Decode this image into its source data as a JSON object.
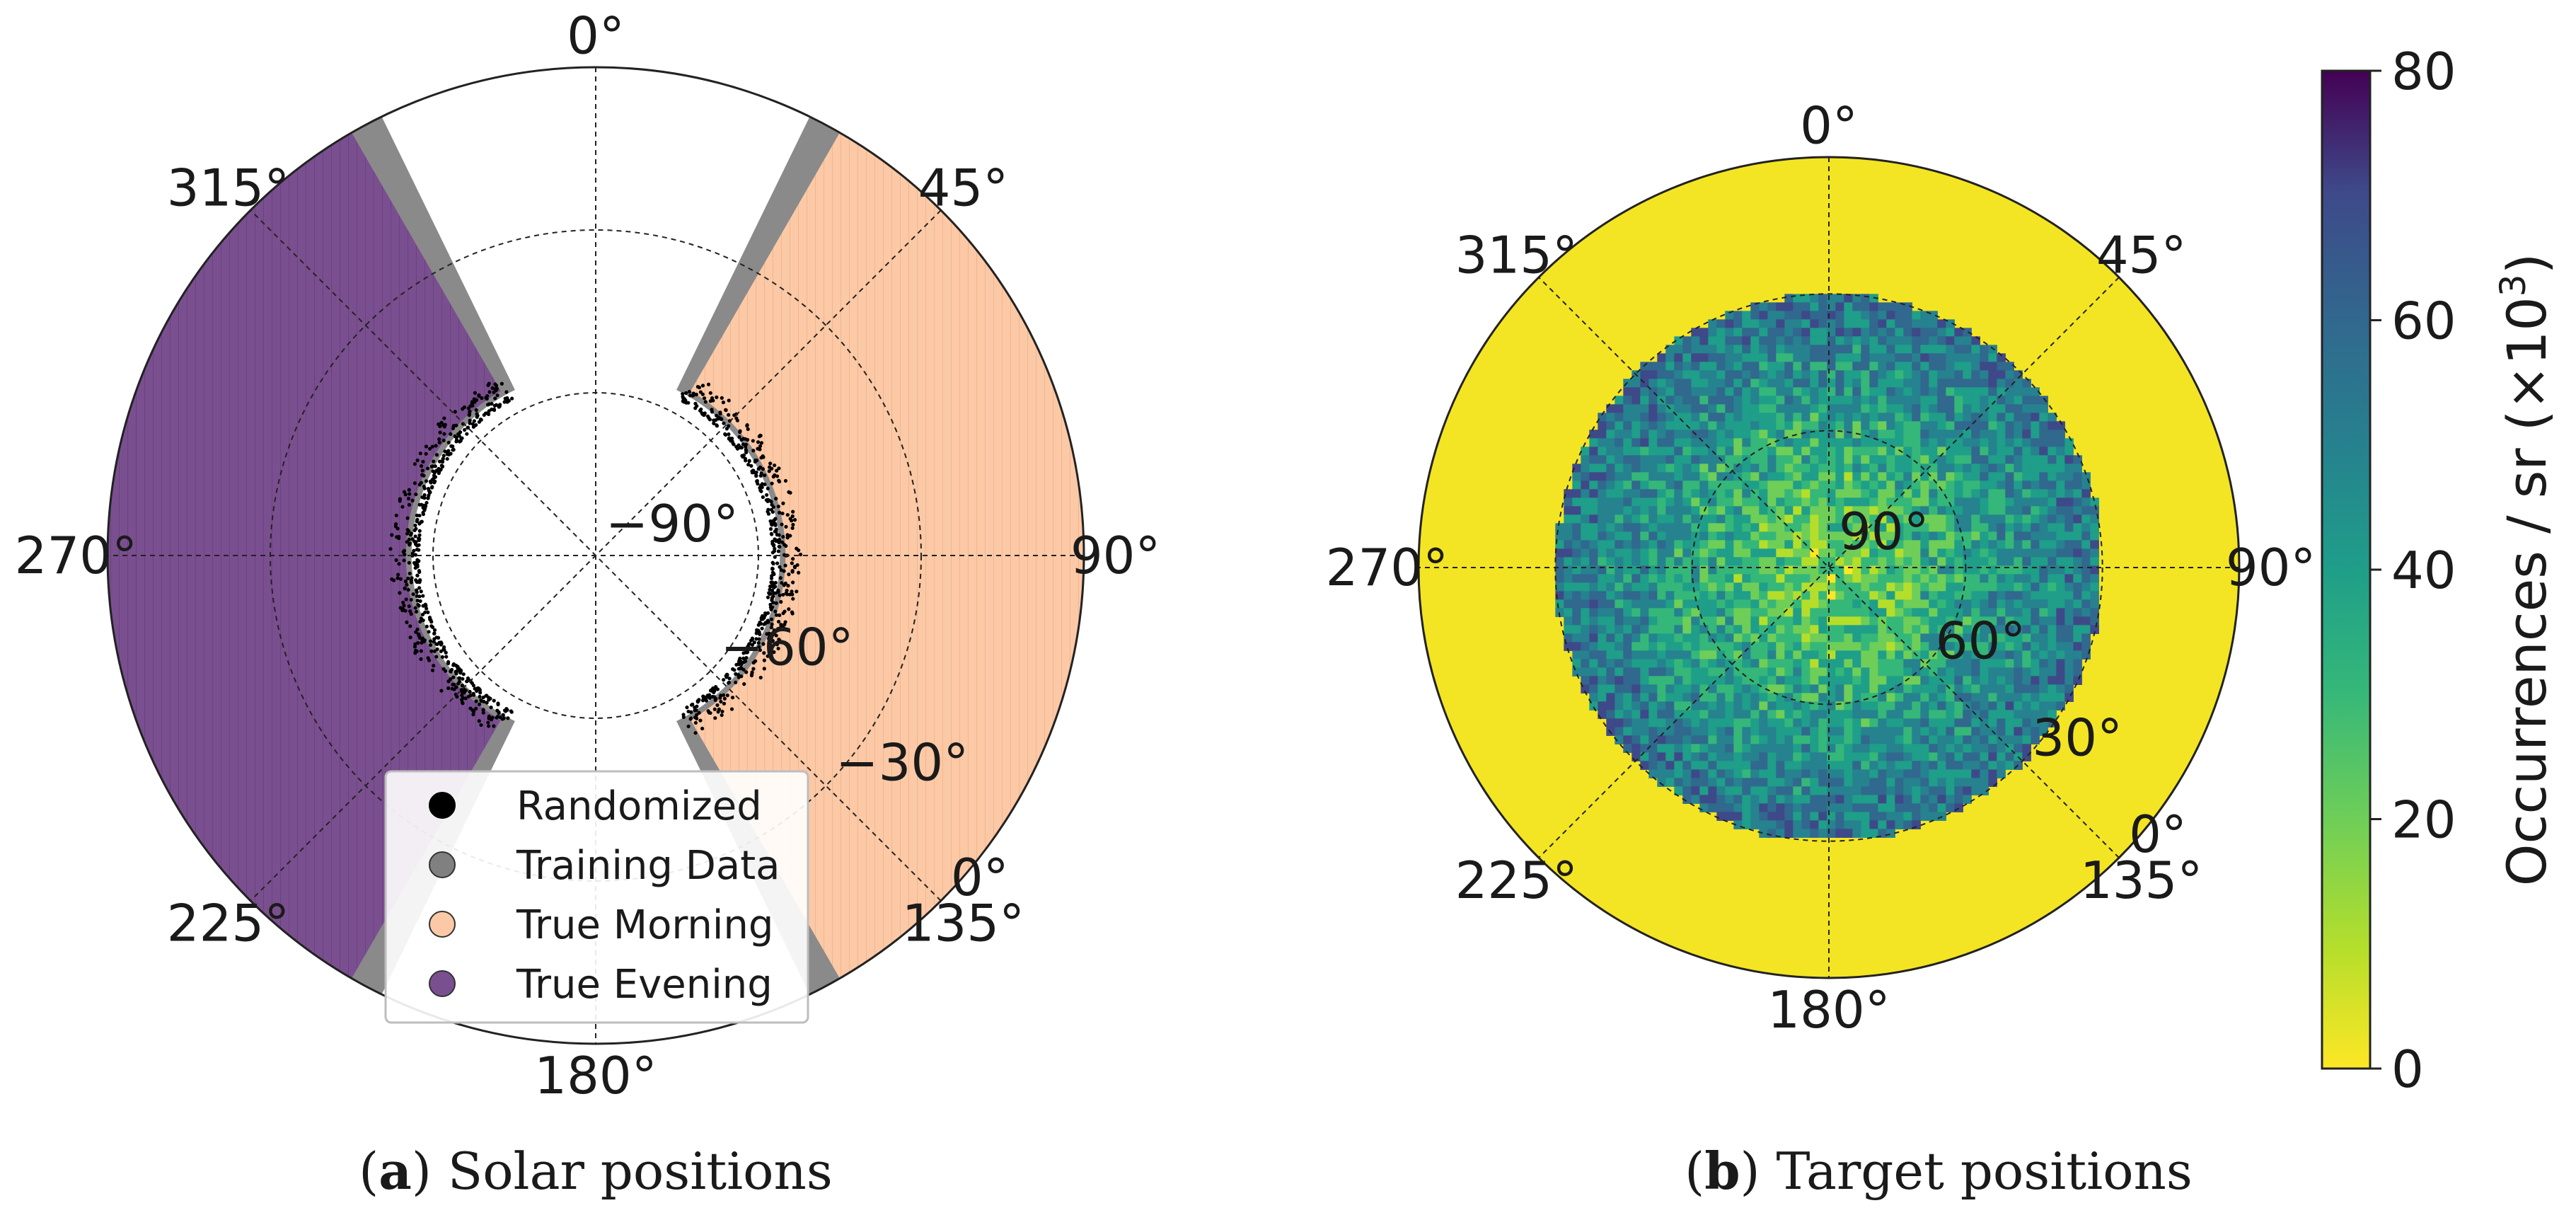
{
  "chart_data": [
    {
      "type": "scatter",
      "projection": "polar",
      "panel_label": "a",
      "caption": "Solar positions",
      "angle_ticks": [
        "0°",
        "45°",
        "90°",
        "135°",
        "180°",
        "225°",
        "270°",
        "315°"
      ],
      "radial_ticks": [
        "−90°",
        "−60°",
        "−30°",
        "0°"
      ],
      "radial_range": [
        -90,
        0
      ],
      "grid": true,
      "legend_position": "bottom-center",
      "legend": [
        {
          "name": "Randomized",
          "color": "#000000"
        },
        {
          "name": "Training Data",
          "color": "#808080"
        },
        {
          "name": "True Morning",
          "color": "#fcc9a6"
        },
        {
          "name": "True Evening",
          "color": "#7a4f8f"
        }
      ],
      "regions": [
        {
          "series": "True Morning",
          "azimuth_range": [
            30,
            150
          ],
          "elevation_range": [
            -55,
            0
          ]
        },
        {
          "series": "True Evening",
          "azimuth_range": [
            210,
            330
          ],
          "elevation_range": [
            -55,
            0
          ]
        }
      ]
    },
    {
      "type": "heatmap",
      "projection": "polar",
      "panel_label": "b",
      "caption": "Target positions",
      "angle_ticks": [
        "0°",
        "45°",
        "90°",
        "135°",
        "180°",
        "225°",
        "270°",
        "315°"
      ],
      "radial_ticks": [
        "90°",
        "60°",
        "30°",
        "0°"
      ],
      "radial_range": [
        90,
        0
      ],
      "grid": true,
      "covered_elevation_range": [
        30,
        90
      ],
      "colorbar": {
        "label": "Occurrences / sr (×10",
        "label_sup": "3",
        "label_end": ")",
        "ticks": [
          "0",
          "20",
          "40",
          "60",
          "80"
        ],
        "range": [
          0,
          80
        ],
        "colormap": "viridis_r"
      }
    }
  ]
}
